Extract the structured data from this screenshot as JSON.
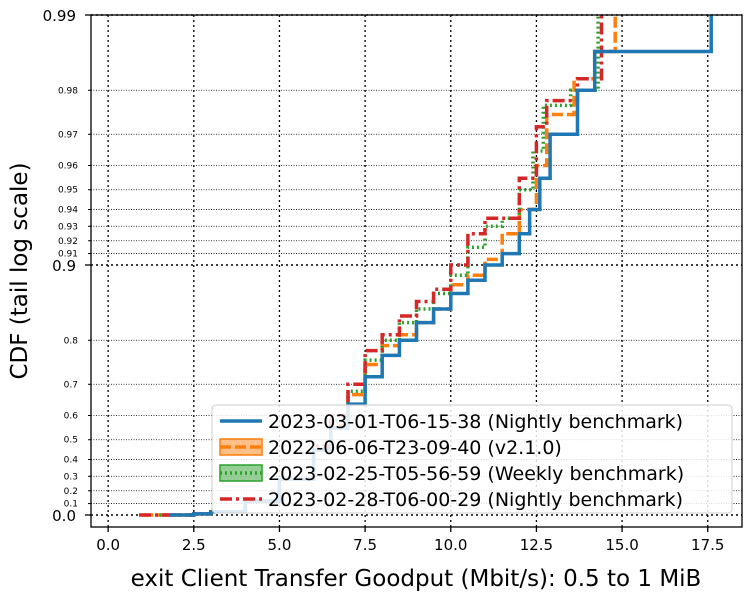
{
  "chart_data": {
    "type": "line",
    "xlabel": "exit Client Transfer Goodput (Mbit/s): 0.5 to 1 MiB",
    "ylabel": "CDF (tail log scale)",
    "xlim": [
      -0.5,
      18.5
    ],
    "y_scale": "tail log (1 - p)",
    "grid": true,
    "legend_position": "lower right",
    "x_ticks": [
      "0.0",
      "2.5",
      "5.0",
      "7.5",
      "10.0",
      "12.5",
      "15.0",
      "17.5"
    ],
    "y_major_ticks": [
      "0.0",
      "0.9",
      "0.99"
    ],
    "y_minor_ticks": [
      "0.1",
      "0.2",
      "0.3",
      "0.4",
      "0.5",
      "0.6",
      "0.7",
      "0.8",
      "0.91",
      "0.92",
      "0.93",
      "0.94",
      "0.95",
      "0.96",
      "0.97",
      "0.98"
    ],
    "series": [
      {
        "name": "2023-03-01-T06-15-38 (Nightly benchmark)",
        "color": "#1f77b4",
        "style": "solid",
        "x": [
          1.8,
          2.5,
          3.0,
          4.0,
          5.0,
          6.0,
          6.5,
          7.0,
          7.5,
          8.0,
          8.5,
          9.0,
          9.5,
          10.0,
          10.5,
          11.0,
          11.5,
          12.0,
          12.3,
          12.6,
          12.9,
          13.7,
          14.2,
          17.6,
          17.6
        ],
        "y": [
          0.0,
          0.01,
          0.03,
          0.12,
          0.28,
          0.45,
          0.55,
          0.64,
          0.72,
          0.77,
          0.8,
          0.83,
          0.85,
          0.87,
          0.885,
          0.9,
          0.91,
          0.925,
          0.94,
          0.955,
          0.97,
          0.98,
          0.986,
          0.986,
          0.99
        ]
      },
      {
        "name": "2022-06-06-T23-09-40 (v2.1.0)",
        "color": "#ff7f0e",
        "style": "dashed",
        "x": [
          1.0,
          2.5,
          3.0,
          4.0,
          5.0,
          6.0,
          6.5,
          7.0,
          7.5,
          8.0,
          8.5,
          9.0,
          9.5,
          10.0,
          10.5,
          11.0,
          11.5,
          12.0,
          12.5,
          12.8,
          13.6,
          14.2,
          14.8,
          14.8
        ],
        "y": [
          0.0,
          0.01,
          0.03,
          0.12,
          0.28,
          0.45,
          0.56,
          0.67,
          0.75,
          0.79,
          0.81,
          0.83,
          0.85,
          0.88,
          0.89,
          0.905,
          0.925,
          0.94,
          0.96,
          0.975,
          0.982,
          0.986,
          0.986,
          0.99
        ]
      },
      {
        "name": "2023-02-25-T05-56-59 (Weekly benchmark)",
        "color": "#2ca02c",
        "style": "dotted",
        "x": [
          1.5,
          2.5,
          3.0,
          4.0,
          5.0,
          6.0,
          6.5,
          7.0,
          7.5,
          8.0,
          8.5,
          9.0,
          9.5,
          10.0,
          10.5,
          11.0,
          11.5,
          12.0,
          12.4,
          12.7,
          13.5,
          14.3,
          14.3
        ],
        "y": [
          0.0,
          0.01,
          0.03,
          0.12,
          0.28,
          0.46,
          0.58,
          0.68,
          0.76,
          0.8,
          0.83,
          0.85,
          0.87,
          0.89,
          0.915,
          0.93,
          0.935,
          0.95,
          0.965,
          0.977,
          0.98,
          0.984,
          0.99
        ]
      },
      {
        "name": "2023-02-28-T06-00-29 (Nightly benchmark)",
        "color": "#d62728",
        "style": "dashdot",
        "x": [
          0.9,
          2.5,
          3.0,
          4.0,
          5.0,
          6.0,
          6.5,
          7.0,
          7.5,
          8.0,
          8.5,
          9.0,
          9.5,
          10.0,
          10.5,
          11.0,
          11.5,
          12.0,
          12.5,
          12.8,
          13.7,
          14.4,
          14.4
        ],
        "y": [
          0.0,
          0.01,
          0.03,
          0.12,
          0.28,
          0.47,
          0.6,
          0.7,
          0.78,
          0.81,
          0.84,
          0.86,
          0.875,
          0.9,
          0.925,
          0.935,
          0.935,
          0.955,
          0.972,
          0.978,
          0.982,
          0.986,
          0.99
        ]
      }
    ]
  }
}
